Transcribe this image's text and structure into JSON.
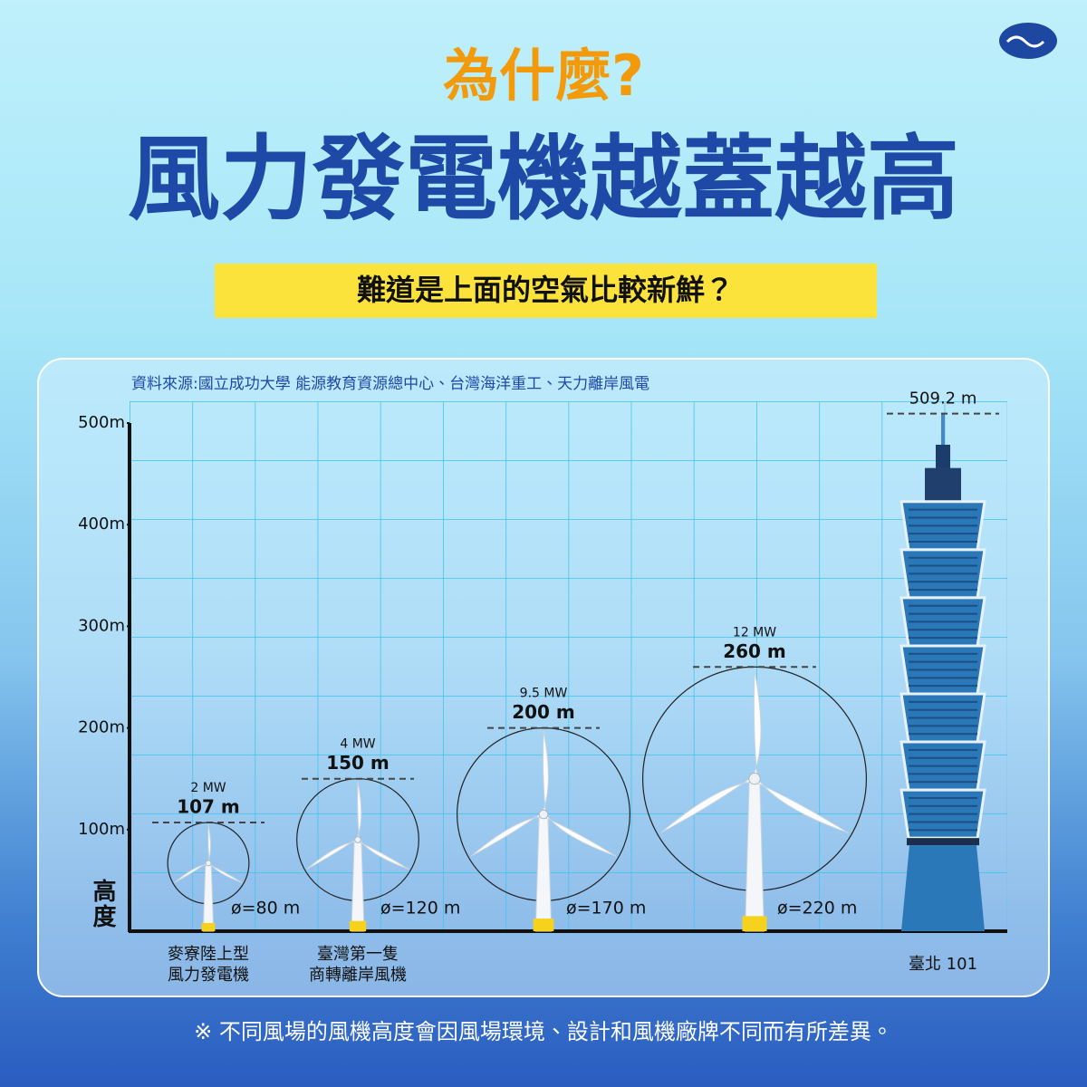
{
  "chart_data": {
    "type": "pictogram",
    "supertitle": "為什麼?",
    "title": "風力發電機越蓋越高",
    "subtitle": "難道是上面的空氣比較新鮮？",
    "source": "資料來源:國立成功大學 能源教育資源總中心、台灣海洋重工、天力離岸風電",
    "ylabel": "高度",
    "categories": [
      "麥寮陸上型\n風力發電機",
      "臺灣第一隻\n商轉離岸風機",
      null,
      null,
      "臺北 101"
    ],
    "values": [
      107,
      150,
      200,
      260,
      509.2
    ],
    "value_labels": [
      "107 m",
      "150 m",
      "200 m",
      "260 m",
      "509.2 m"
    ],
    "power": [
      2,
      4,
      9.5,
      12,
      null
    ],
    "power_labels": [
      "2 MW",
      "4 MW",
      "9.5 MW",
      "12 MW",
      null
    ],
    "diameters": [
      80,
      120,
      170,
      220,
      null
    ],
    "diameter_labels": [
      "ø=80 m",
      "ø=120 m",
      "ø=170 m",
      "ø=220 m",
      null
    ],
    "ylim": [
      0,
      500
    ],
    "yticks": [
      {
        "value": 100,
        "label": "100m"
      },
      {
        "value": 200,
        "label": "200m"
      },
      {
        "value": 300,
        "label": "300m"
      },
      {
        "value": 400,
        "label": "400m"
      },
      {
        "value": 500,
        "label": "500m"
      }
    ],
    "color": "#2b78b8",
    "note": "※ 不同風場的風機高度會因風場環境、設計和風機廠牌不同而有所差異。"
  }
}
